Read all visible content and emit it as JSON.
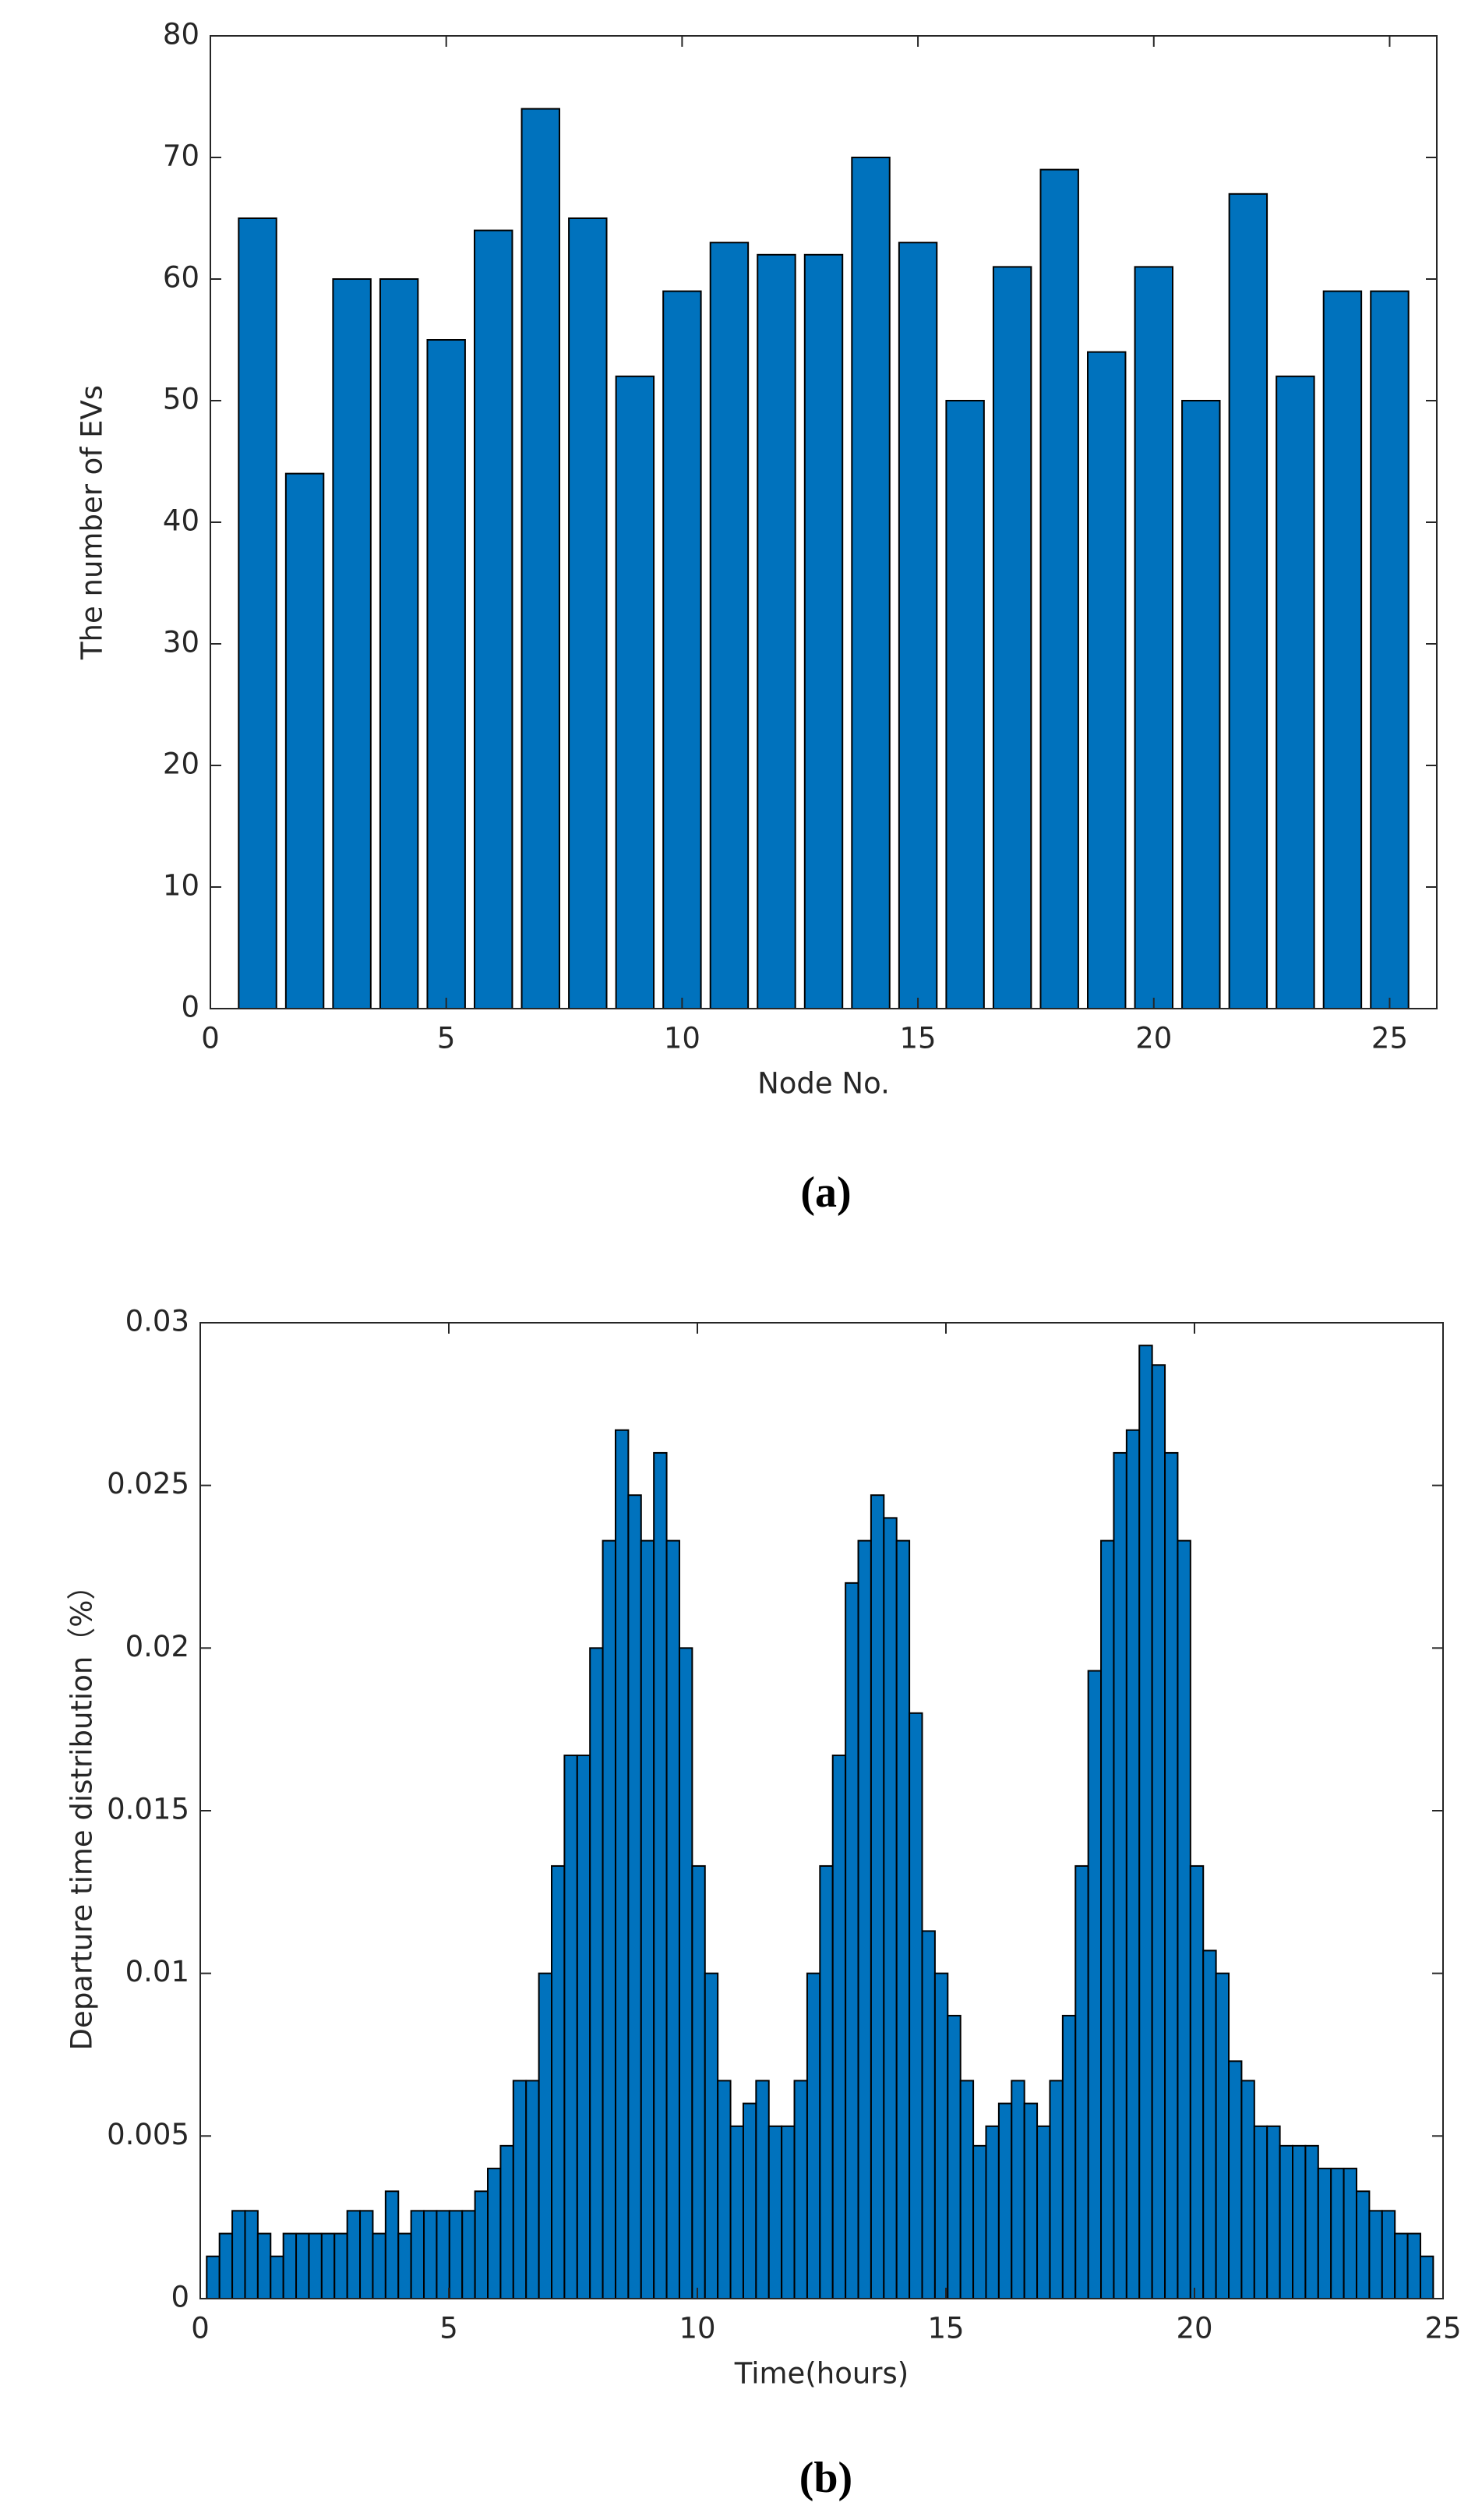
{
  "chart_data": [
    {
      "type": "bar",
      "caption": "(a)",
      "xlabel": "Node No.",
      "ylabel": "The number of EVs",
      "x": [
        1,
        2,
        3,
        4,
        5,
        6,
        7,
        8,
        9,
        10,
        11,
        12,
        13,
        14,
        15,
        16,
        17,
        18,
        19,
        20,
        21,
        22,
        23,
        24,
        25
      ],
      "values": [
        65,
        44,
        60,
        60,
        55,
        64,
        74,
        65,
        52,
        59,
        63,
        62,
        62,
        70,
        63,
        50,
        61,
        69,
        54,
        61,
        50,
        67,
        52,
        59,
        59
      ],
      "color": "#0072bd",
      "xlim": [
        0,
        26
      ],
      "xticks": [
        0,
        5,
        10,
        15,
        20,
        25
      ],
      "ylim": [
        0,
        80
      ],
      "yticks": [
        0,
        10,
        20,
        30,
        40,
        50,
        60,
        70,
        80
      ]
    },
    {
      "type": "histogram",
      "caption": "(b)",
      "xlabel": "Time(hours)",
      "ylabel": "Departure time distribution（%）",
      "bins": [
        0.13,
        0.387,
        0.644,
        0.901,
        1.158,
        1.415,
        1.672,
        1.929,
        2.186,
        2.443,
        2.7,
        2.957,
        3.214,
        3.471,
        3.728,
        3.985,
        4.242,
        4.499,
        4.756,
        5.013,
        5.27,
        5.527,
        5.784,
        6.041,
        6.298,
        6.555,
        6.812,
        7.069,
        7.326,
        7.583,
        7.84,
        8.097,
        8.354,
        8.611,
        8.868,
        9.125,
        9.382,
        9.639,
        9.896,
        10.153,
        10.41,
        10.667,
        10.924,
        11.181,
        11.438,
        11.695,
        11.952,
        12.209,
        12.466,
        12.723,
        12.98,
        13.237,
        13.494,
        13.751,
        14.008,
        14.265,
        14.522,
        14.779,
        15.036,
        15.293,
        15.55,
        15.807,
        16.064,
        16.321,
        16.578,
        16.835,
        17.092,
        17.349,
        17.606,
        17.863,
        18.12,
        18.377,
        18.634,
        18.891,
        19.148,
        19.405,
        19.662,
        19.919,
        20.176,
        20.433,
        20.69,
        20.947,
        21.204,
        21.461,
        21.718,
        21.975,
        22.232,
        22.489,
        22.746,
        23.003,
        23.26,
        23.517,
        23.774,
        24.031,
        24.288,
        24.545,
        24.802
      ],
      "values": [
        0.0013,
        0.002,
        0.0027,
        0.0027,
        0.002,
        0.0013,
        0.002,
        0.002,
        0.002,
        0.002,
        0.002,
        0.0027,
        0.0027,
        0.002,
        0.0033,
        0.002,
        0.0027,
        0.0027,
        0.0027,
        0.0027,
        0.0027,
        0.0033,
        0.004,
        0.0047,
        0.0067,
        0.0067,
        0.01,
        0.0133,
        0.0167,
        0.0167,
        0.02,
        0.0233,
        0.0267,
        0.0247,
        0.0233,
        0.026,
        0.0233,
        0.02,
        0.0133,
        0.01,
        0.0067,
        0.0053,
        0.006,
        0.0067,
        0.0053,
        0.0053,
        0.0067,
        0.01,
        0.0133,
        0.0167,
        0.022,
        0.0233,
        0.0247,
        0.024,
        0.0233,
        0.018,
        0.0113,
        0.01,
        0.0087,
        0.0067,
        0.0047,
        0.0053,
        0.006,
        0.0067,
        0.006,
        0.0053,
        0.0067,
        0.0087,
        0.0133,
        0.0193,
        0.0233,
        0.026,
        0.0267,
        0.0293,
        0.0287,
        0.026,
        0.0233,
        0.0133,
        0.0107,
        0.01,
        0.0073,
        0.0067,
        0.0053,
        0.0053,
        0.0047,
        0.0047,
        0.0047,
        0.004,
        0.004,
        0.004,
        0.0033,
        0.0027,
        0.0027,
        0.002,
        0.002,
        0.0013
      ],
      "color": "#0072bd",
      "xlim": [
        0,
        25
      ],
      "xticks": [
        0,
        5,
        10,
        15,
        20,
        25
      ],
      "ylim": [
        0,
        0.03
      ],
      "yticks": [
        0,
        0.005,
        0.01,
        0.015,
        0.02,
        0.025,
        0.03
      ]
    }
  ]
}
